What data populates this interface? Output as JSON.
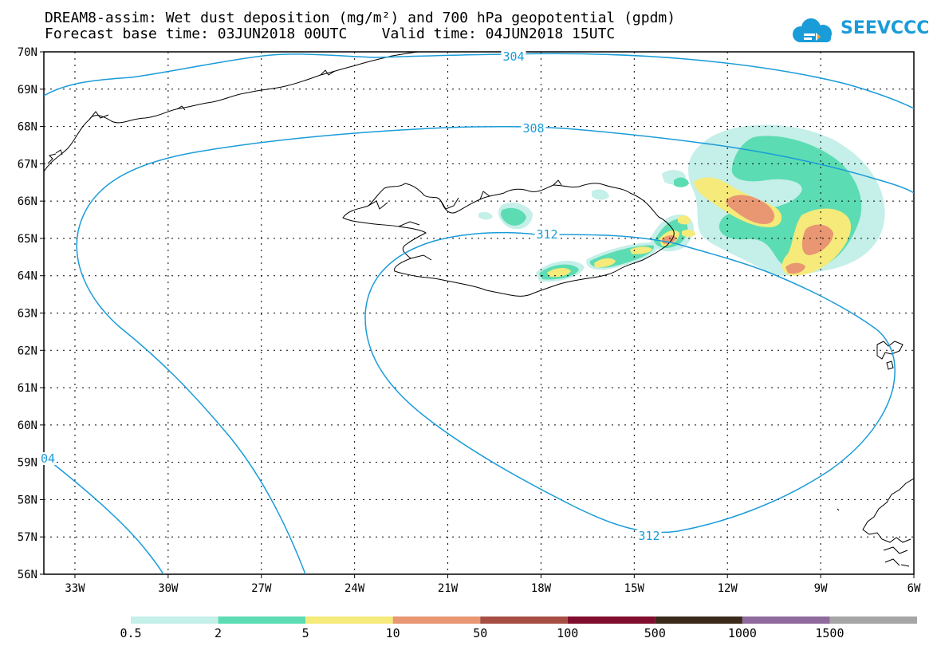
{
  "header": {
    "title_line1": "DREAM8-assim: Wet dust deposition (mg/m²) and 700 hPa geopotential (gpdm)",
    "title_line2": "Forecast base time: 03JUN2018 00UTC    Valid time: 04JUN2018 15UTC",
    "logo_text": "SEEVCCC",
    "logo_color": "#1a9cd8"
  },
  "map": {
    "lon_range": [
      -34,
      -6
    ],
    "lat_range": [
      56,
      70
    ],
    "lat_labels": [
      "70N",
      "69N",
      "68N",
      "67N",
      "66N",
      "65N",
      "64N",
      "63N",
      "62N",
      "61N",
      "60N",
      "59N",
      "58N",
      "57N",
      "56N"
    ],
    "lon_labels": [
      "33W",
      "30W",
      "27W",
      "24W",
      "21W",
      "18W",
      "15W",
      "12W",
      "9W",
      "6W"
    ],
    "contour_color": "#1a9cd8",
    "contour_labels": [
      "304",
      "308",
      "312",
      "312",
      "04"
    ]
  },
  "colorbar": {
    "colors": [
      "#c5efe9",
      "#5cdcb3",
      "#f5ea7a",
      "#e99672",
      "#a64d44",
      "#7f0d2b",
      "#3b2a1a",
      "#8f6a9c",
      "#a6a6a6"
    ],
    "labels": [
      "0.5",
      "2",
      "5",
      "10",
      "50",
      "100",
      "500",
      "1000",
      "1500"
    ]
  }
}
